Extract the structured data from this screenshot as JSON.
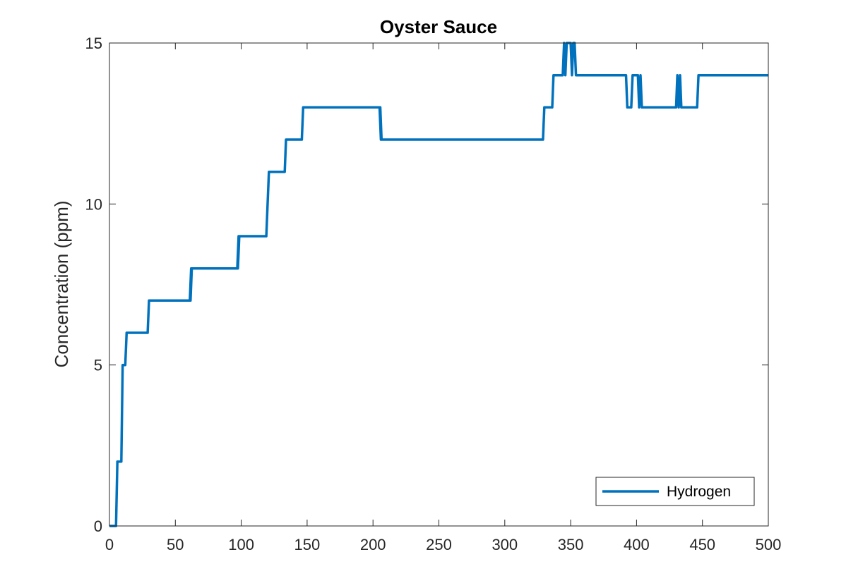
{
  "chart_data": {
    "type": "line",
    "title": "Oyster Sauce",
    "xlabel": "",
    "ylabel": "Concentration (ppm)",
    "xlim": [
      0,
      500
    ],
    "ylim": [
      0,
      15
    ],
    "xticks": [
      0,
      50,
      100,
      150,
      200,
      250,
      300,
      350,
      400,
      450,
      500
    ],
    "yticks": [
      0,
      5,
      10,
      15
    ],
    "grid": false,
    "legend_position": "bottom-right",
    "series": [
      {
        "name": "Hydrogen",
        "color": "#0072BD",
        "points": [
          [
            0,
            0
          ],
          [
            5,
            0
          ],
          [
            6,
            2
          ],
          [
            9,
            2
          ],
          [
            10,
            5
          ],
          [
            12,
            5
          ],
          [
            13,
            6
          ],
          [
            29,
            6
          ],
          [
            30,
            7
          ],
          [
            61,
            7
          ],
          [
            62,
            8
          ],
          [
            61.5,
            7
          ],
          [
            62.5,
            8
          ],
          [
            97,
            8
          ],
          [
            98,
            9
          ],
          [
            97.5,
            8
          ],
          [
            98.5,
            9
          ],
          [
            119,
            9
          ],
          [
            121,
            11
          ],
          [
            133,
            11
          ],
          [
            134,
            12
          ],
          [
            146,
            12
          ],
          [
            147,
            13
          ],
          [
            205,
            13
          ],
          [
            206,
            12
          ],
          [
            205.5,
            13
          ],
          [
            206.5,
            12
          ],
          [
            329,
            12
          ],
          [
            330,
            13
          ],
          [
            336,
            13
          ],
          [
            337,
            14
          ],
          [
            344,
            14
          ],
          [
            345,
            15
          ],
          [
            346,
            14
          ],
          [
            347,
            15
          ],
          [
            350,
            15
          ],
          [
            351,
            14
          ],
          [
            352,
            15
          ],
          [
            353,
            15
          ],
          [
            354,
            14
          ],
          [
            392,
            14
          ],
          [
            393,
            13
          ],
          [
            396,
            13
          ],
          [
            397,
            14
          ],
          [
            401,
            14
          ],
          [
            402,
            13
          ],
          [
            403,
            14
          ],
          [
            404,
            13
          ],
          [
            430,
            13
          ],
          [
            431,
            14
          ],
          [
            432,
            13
          ],
          [
            433,
            14
          ],
          [
            434,
            13
          ],
          [
            446,
            13
          ],
          [
            447,
            14
          ],
          [
            500,
            14
          ]
        ]
      }
    ]
  }
}
